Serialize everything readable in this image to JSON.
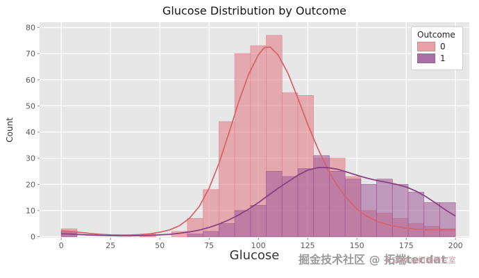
{
  "watermarks": {
    "main": "掘金技术社区 @ 拓端tecdat",
    "secondary": "CSDN @拓端研究室"
  },
  "chart_data": {
    "type": "bar",
    "subtype": "histogram-with-kde",
    "title": "Glucose Distribution by Outcome",
    "xlabel": "Glucose",
    "ylabel": "Count",
    "xlim": [
      -11,
      207
    ],
    "ylim": [
      -0.4,
      82
    ],
    "xticks": [
      0,
      25,
      50,
      75,
      100,
      125,
      150,
      175,
      200
    ],
    "yticks": [
      0,
      10,
      20,
      30,
      40,
      50,
      60,
      70,
      80
    ],
    "grid": true,
    "plot_bg": "#e7e7e7",
    "grid_color": "#ffffff",
    "tick_color": "#595959",
    "legend": {
      "title": "Outcome",
      "position": "upper right",
      "entries": [
        {
          "label": "0",
          "color": "#eba0a8"
        },
        {
          "label": "1",
          "color": "#aa70a5"
        }
      ]
    },
    "bin_start": 0,
    "bin_width": 8,
    "series": [
      {
        "name": "0",
        "bar_fill": "#e2838d",
        "bar_opacity": 0.62,
        "line_color": "#d8636e",
        "counts": [
          3,
          0,
          0,
          0,
          0,
          1,
          0,
          2,
          7,
          18,
          44,
          70,
          73,
          77,
          55,
          54,
          30,
          30,
          23,
          10,
          9,
          7,
          5,
          4,
          3
        ],
        "kde": [
          [
            0,
            2.2
          ],
          [
            5,
            2.0
          ],
          [
            10,
            1.6
          ],
          [
            15,
            1.2
          ],
          [
            20,
            0.9
          ],
          [
            25,
            0.7
          ],
          [
            30,
            0.6
          ],
          [
            35,
            0.6
          ],
          [
            40,
            0.8
          ],
          [
            45,
            1.1
          ],
          [
            50,
            1.7
          ],
          [
            55,
            2.6
          ],
          [
            60,
            4.2
          ],
          [
            65,
            7.0
          ],
          [
            70,
            11.5
          ],
          [
            75,
            18.5
          ],
          [
            80,
            28.0
          ],
          [
            85,
            39.5
          ],
          [
            90,
            51.5
          ],
          [
            95,
            62.0
          ],
          [
            100,
            69.5
          ],
          [
            103,
            72.3
          ],
          [
            106,
            72.5
          ],
          [
            110,
            69.5
          ],
          [
            115,
            62.5
          ],
          [
            120,
            53.0
          ],
          [
            125,
            43.0
          ],
          [
            130,
            34.0
          ],
          [
            135,
            26.0
          ],
          [
            140,
            19.5
          ],
          [
            145,
            14.5
          ],
          [
            150,
            10.5
          ],
          [
            155,
            7.8
          ],
          [
            160,
            5.9
          ],
          [
            165,
            4.7
          ],
          [
            170,
            3.9
          ],
          [
            175,
            3.3
          ],
          [
            180,
            2.9
          ],
          [
            185,
            2.7
          ],
          [
            190,
            2.6
          ],
          [
            195,
            2.6
          ],
          [
            200,
            2.7
          ]
        ]
      },
      {
        "name": "1",
        "bar_fill": "#9e5a99",
        "bar_opacity": 0.55,
        "line_color": "#8a4184",
        "counts": [
          2,
          0,
          0,
          0,
          0,
          0,
          0,
          0,
          1,
          2,
          5,
          10,
          12,
          25,
          23,
          26,
          31,
          25,
          22,
          20,
          22,
          20,
          17,
          13,
          13
        ],
        "kde": [
          [
            0,
            1.1
          ],
          [
            5,
            1.0
          ],
          [
            10,
            0.8
          ],
          [
            15,
            0.6
          ],
          [
            20,
            0.5
          ],
          [
            25,
            0.4
          ],
          [
            30,
            0.3
          ],
          [
            35,
            0.3
          ],
          [
            40,
            0.4
          ],
          [
            45,
            0.5
          ],
          [
            50,
            0.7
          ],
          [
            55,
            0.9
          ],
          [
            60,
            1.3
          ],
          [
            65,
            1.8
          ],
          [
            70,
            2.5
          ],
          [
            75,
            3.5
          ],
          [
            80,
            4.8
          ],
          [
            85,
            6.4
          ],
          [
            90,
            8.3
          ],
          [
            95,
            10.5
          ],
          [
            100,
            13.0
          ],
          [
            105,
            15.8
          ],
          [
            110,
            18.5
          ],
          [
            115,
            21.0
          ],
          [
            120,
            23.5
          ],
          [
            125,
            25.4
          ],
          [
            130,
            26.4
          ],
          [
            135,
            26.4
          ],
          [
            140,
            25.8
          ],
          [
            145,
            24.7
          ],
          [
            150,
            23.5
          ],
          [
            155,
            22.4
          ],
          [
            160,
            21.5
          ],
          [
            165,
            20.8
          ],
          [
            170,
            20.0
          ],
          [
            175,
            19.0
          ],
          [
            180,
            17.4
          ],
          [
            185,
            15.3
          ],
          [
            190,
            12.8
          ],
          [
            195,
            10.2
          ],
          [
            200,
            7.9
          ]
        ]
      }
    ]
  }
}
